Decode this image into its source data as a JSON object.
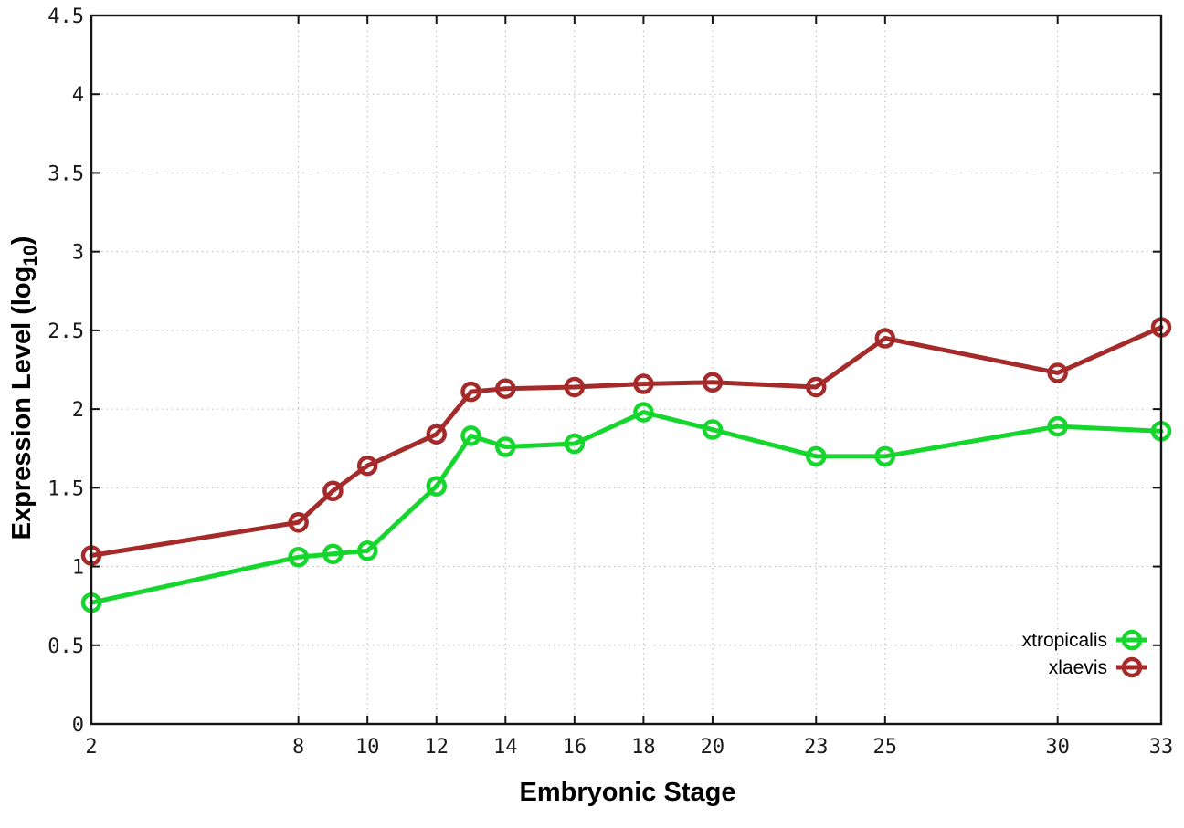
{
  "figure": {
    "background_color": "#ffffff",
    "axis_color": "#141414",
    "grid_color": "#b8b8b8"
  },
  "chart_data": {
    "type": "line",
    "title": "",
    "xlabel": "Embryonic Stage",
    "ylabel": "Expression Level (log10)",
    "ylabel_parts": {
      "pre": "Expression Level (log",
      "sub": "10",
      "post": ")"
    },
    "x": [
      2,
      8,
      9,
      10,
      12,
      13,
      14,
      16,
      18,
      20,
      23,
      25,
      30,
      33
    ],
    "xlim": [
      2,
      33
    ],
    "ylim": [
      0,
      4.5
    ],
    "xtick_values": [
      2,
      8,
      10,
      12,
      14,
      16,
      18,
      20,
      23,
      25,
      30,
      33
    ],
    "xtick_labels": [
      "2",
      "8",
      "10",
      "12",
      "14",
      "16",
      "18",
      "20",
      "23",
      "25",
      "30",
      "33"
    ],
    "ytick_values": [
      0,
      0.5,
      1,
      1.5,
      2,
      2.5,
      3,
      3.5,
      4,
      4.5
    ],
    "ytick_labels": [
      "0",
      "0.5",
      "1",
      "1.5",
      "2",
      "2.5",
      "3",
      "3.5",
      "4",
      "4.5"
    ],
    "grid": "dotted",
    "legend_position": "inside-bottom-right",
    "series": [
      {
        "name": "xtropicalis",
        "color": "#14d62c",
        "marker": "open-circle",
        "values": [
          0.77,
          1.06,
          1.08,
          1.1,
          1.51,
          1.83,
          1.76,
          1.78,
          1.98,
          1.87,
          1.7,
          1.7,
          1.89,
          1.86
        ]
      },
      {
        "name": "xlaevis",
        "color": "#a52a2a",
        "marker": "open-circle",
        "values": [
          1.07,
          1.28,
          1.48,
          1.64,
          1.84,
          2.11,
          2.13,
          2.14,
          2.16,
          2.17,
          2.14,
          2.45,
          2.23,
          2.52
        ]
      }
    ]
  }
}
